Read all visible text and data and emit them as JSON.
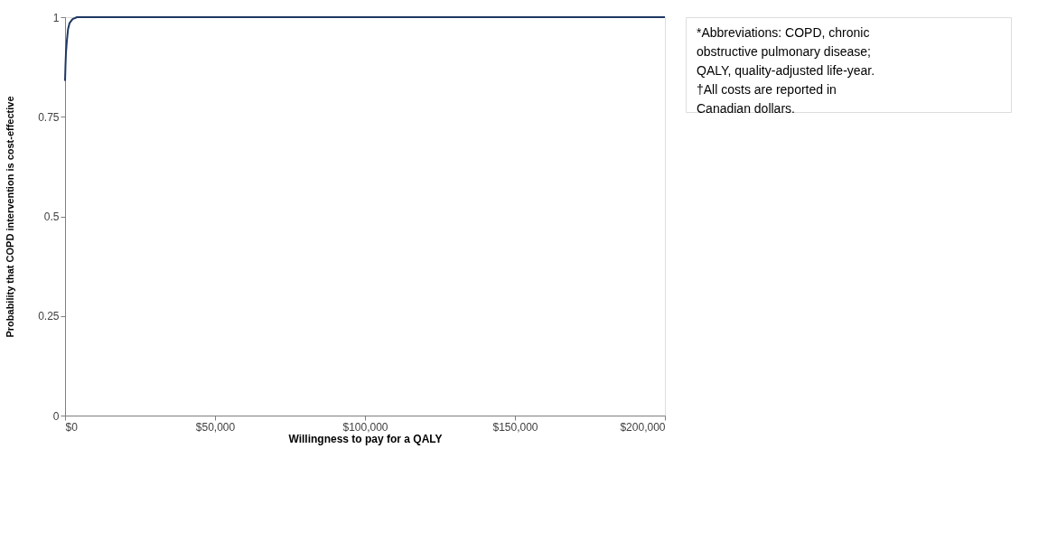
{
  "chart_data": {
    "type": "line",
    "xlabel": "Willingness to pay for a QALY",
    "ylabel": "Probability that COPD intervention is cost-effective",
    "x": [
      0,
      150,
      300,
      600,
      1000,
      1500,
      2500,
      4000,
      200000
    ],
    "series": [
      {
        "color": "#1f3864",
        "values": [
          0.84,
          0.88,
          0.91,
          0.94,
          0.97,
          0.985,
          0.995,
          1,
          1
        ]
      }
    ],
    "xlim": [
      0,
      200000
    ],
    "xticks": [
      {
        "value": 0,
        "label": "$0"
      },
      {
        "value": 50000,
        "label": "$50,000"
      },
      {
        "value": 100000,
        "label": "$100,000"
      },
      {
        "value": 150000,
        "label": "$150,000"
      },
      {
        "value": 200000,
        "label": "$200,000"
      }
    ],
    "ylim": [
      0,
      1
    ],
    "yticks": [
      0,
      0.25,
      0.5,
      0.75,
      1
    ],
    "grid": false,
    "legend": false,
    "marker": "none",
    "line_style": "solid",
    "annotations": [
      "*Abbreviations: COPD, chronic obstructive pulmonary disease; QALY, quality-adjusted life-year.",
      "†All costs are reported in Canadian dollars."
    ]
  }
}
